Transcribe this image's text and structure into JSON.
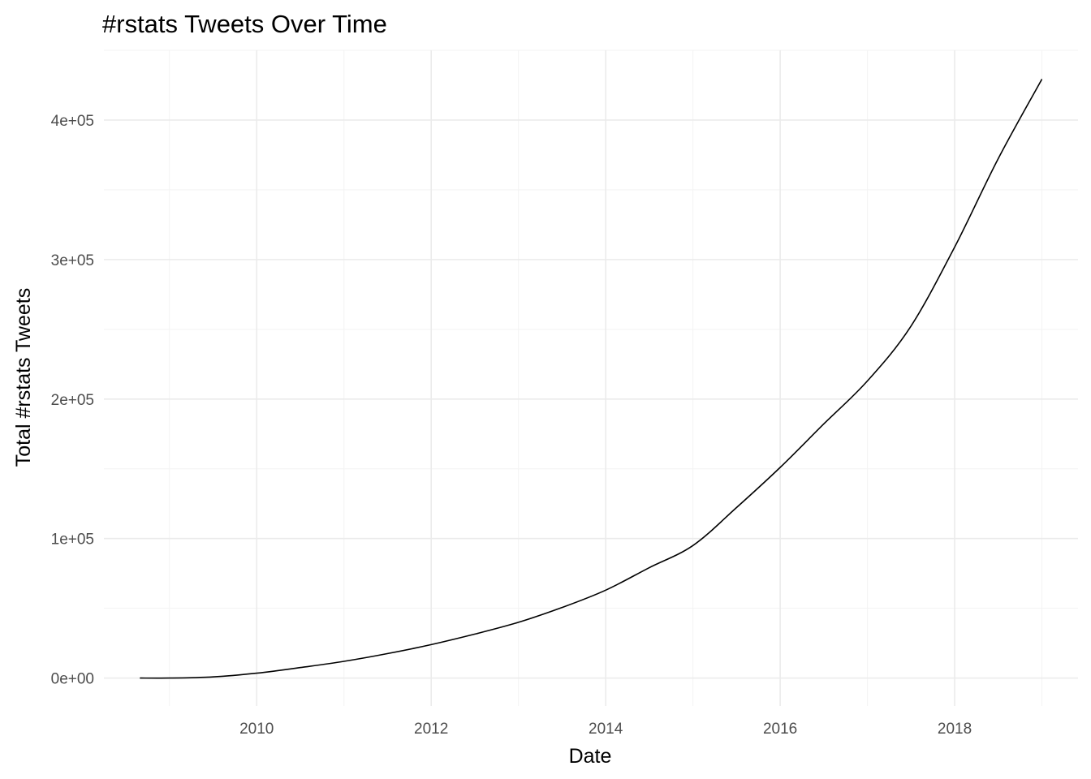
{
  "chart_data": {
    "type": "line",
    "title": "#rstats Tweets Over Time",
    "xlabel": "Date",
    "ylabel": "Total #rstats Tweets",
    "x_ticks": [
      "2010",
      "2012",
      "2014",
      "2016",
      "2018"
    ],
    "y_ticks": [
      "0e+00",
      "1e+05",
      "2e+05",
      "3e+05",
      "4e+05"
    ],
    "x_tick_values": [
      "2010-01-01",
      "2012-01-01",
      "2014-01-01",
      "2016-01-01",
      "2018-01-01"
    ],
    "y_tick_values": [
      0,
      100000,
      200000,
      300000,
      400000
    ],
    "xlim": [
      "2008-04-01",
      "2019-06-01"
    ],
    "ylim": [
      -20000,
      450000
    ],
    "grid": true,
    "legend": "none",
    "series": [
      {
        "x": [
          "2008-09-01",
          "2009-01-01",
          "2009-07-01",
          "2010-01-01",
          "2010-07-01",
          "2011-01-01",
          "2011-07-01",
          "2012-01-01",
          "2012-07-01",
          "2013-01-01",
          "2013-07-01",
          "2014-01-01",
          "2014-07-01",
          "2015-01-01",
          "2015-07-01",
          "2016-01-01",
          "2016-07-01",
          "2017-01-01",
          "2017-07-01",
          "2018-01-01",
          "2018-07-01",
          "2018-12-31"
        ],
        "values": [
          0,
          0,
          800,
          3500,
          7500,
          12000,
          17500,
          24000,
          31500,
          40000,
          50500,
          63000,
          79000,
          95000,
          122000,
          151000,
          182000,
          213000,
          252000,
          309000,
          372000,
          429000
        ]
      }
    ]
  }
}
